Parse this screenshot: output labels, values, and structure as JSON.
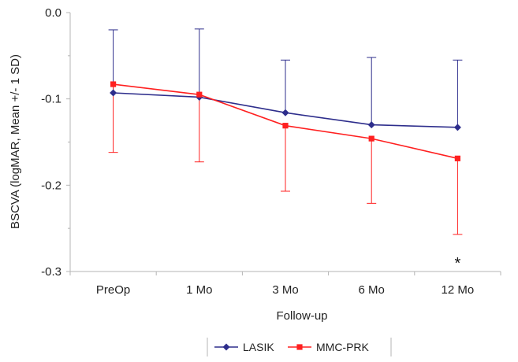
{
  "chart_data": {
    "type": "line",
    "xlabel": "Follow-up",
    "ylabel": "BSCVA (logMAR, Mean +/- 1 SD)",
    "categories": [
      "PreOp",
      "1 Mo",
      "3 Mo",
      "6 Mo",
      "12 Mo"
    ],
    "ylim": [
      -0.3,
      0.0
    ],
    "yticks": [
      0.0,
      -0.1,
      -0.2,
      -0.3
    ],
    "ytick_labels": [
      "0.0",
      "-0.1",
      "-0.2",
      "-0.3"
    ],
    "grid": false,
    "legend_position": "bottom-center",
    "series": [
      {
        "name": "LASIK",
        "color": "#2e2e8c",
        "marker": "diamond",
        "values": [
          -0.093,
          -0.098,
          -0.116,
          -0.13,
          -0.133
        ],
        "error_up": [
          0.073,
          0.079,
          0.061,
          0.078,
          0.078
        ],
        "error_down": null
      },
      {
        "name": "MMC-PRK",
        "color": "#ff2020",
        "marker": "square",
        "values": [
          -0.083,
          -0.095,
          -0.131,
          -0.146,
          -0.169
        ],
        "error_up": null,
        "error_down": [
          0.079,
          0.078,
          0.076,
          0.075,
          0.088
        ]
      }
    ],
    "annotations": [
      {
        "text": "*",
        "category": "12 Mo"
      }
    ]
  }
}
